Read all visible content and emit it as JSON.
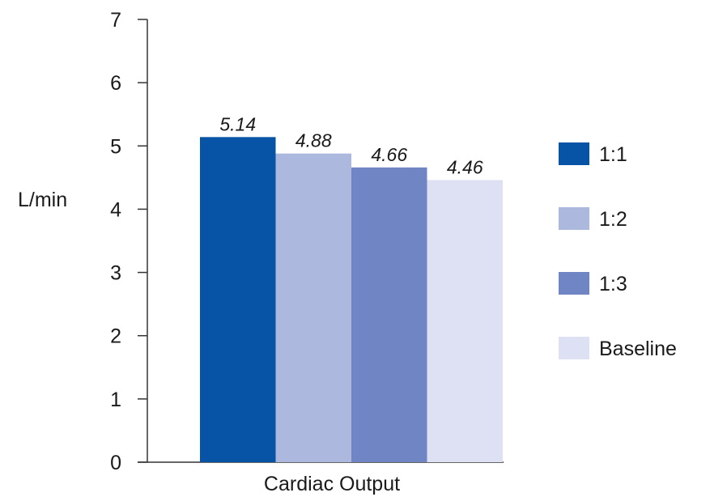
{
  "chart_data": {
    "type": "bar",
    "categories": [
      "Cardiac Output"
    ],
    "series": [
      {
        "name": "1:1",
        "values": [
          5.14
        ],
        "label": "5.14",
        "color": "#0753a6"
      },
      {
        "name": "1:2",
        "values": [
          4.88
        ],
        "label": "4.88",
        "color": "#adb8de"
      },
      {
        "name": "1:3",
        "values": [
          4.66
        ],
        "label": "4.66",
        "color": "#7086c4"
      },
      {
        "name": "Baseline",
        "values": [
          4.46
        ],
        "label": "4.46",
        "color": "#dee1f3"
      }
    ],
    "ylabel": "L/min",
    "xlabel": "",
    "ylim": [
      0,
      7
    ],
    "yticks": [
      "0",
      "1",
      "2",
      "3",
      "4",
      "5",
      "6",
      "7"
    ],
    "grid": false,
    "legend_position": "right"
  }
}
